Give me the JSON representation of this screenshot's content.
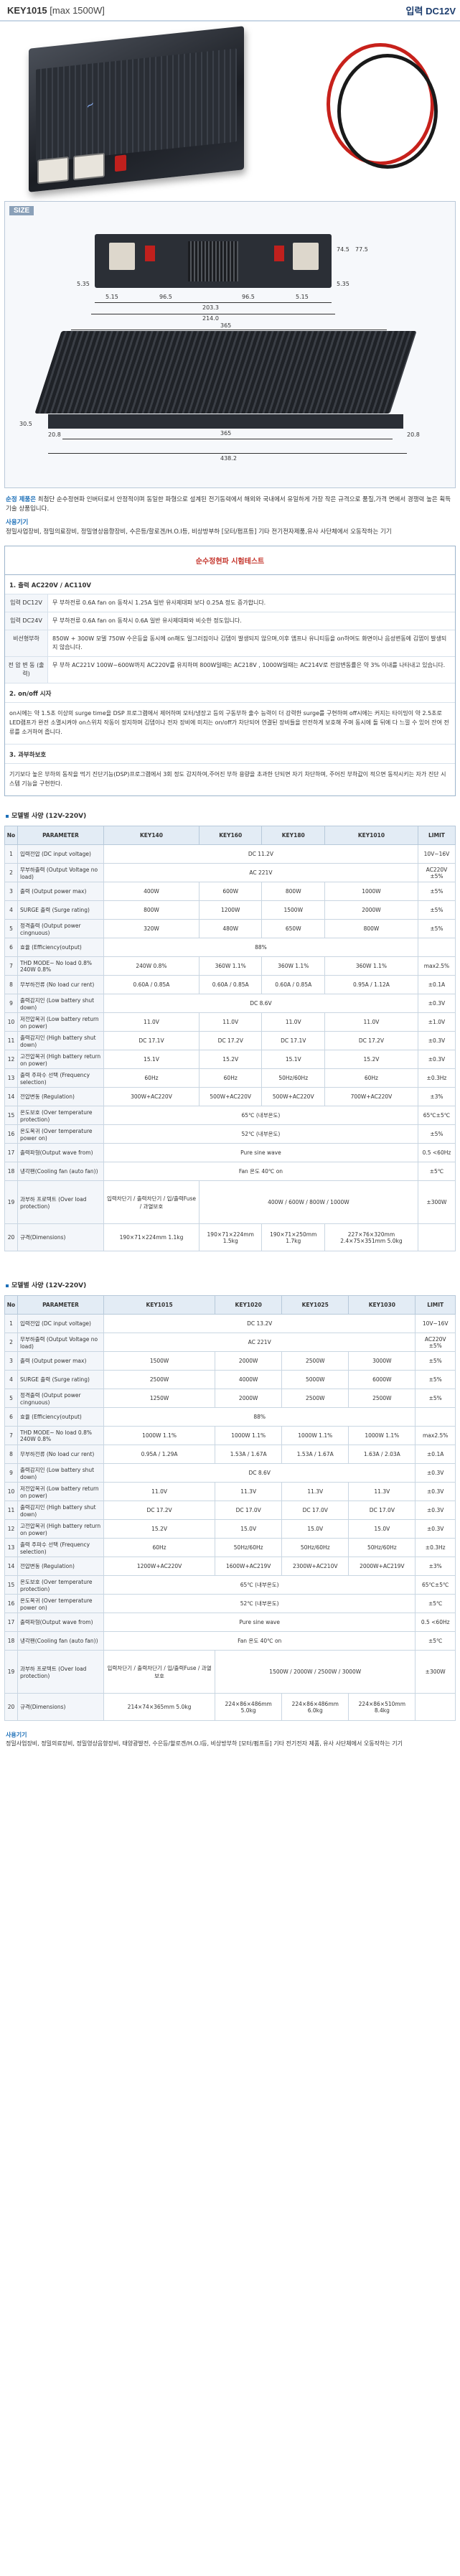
{
  "header": {
    "model": "KEY1015",
    "sub": "[max 1500W]",
    "input_label": "입력 DC12V"
  },
  "size": {
    "title": "SIZE",
    "dims_front": [
      "5.35",
      "5.15",
      "96.5",
      "96.5",
      "5.15",
      "5.35",
      "203.3",
      "214.0",
      "74.5",
      "77.5"
    ],
    "dims_side": [
      "365",
      "30.5",
      "20.8",
      "365",
      "20.8",
      "438.2"
    ]
  },
  "description": {
    "lead_highlight": "순정 제품은",
    "body": " 최첨단 순수정현파 인버터로서 안정적이며 동일한 파형으로 설계된 전기동력에서 해외와 국내에서 유일하게 가장 작은 규격으로 품질,가격 면에서 경쟁력 높은 획득기술 상품입니다.",
    "usage_title": "사용기기",
    "usage_body": "정밀사업장비, 정밀의료장비, 정밀영상음향장비, 수은등/할로겐/H.O.I등, 비상방부하 [모터/펌프등] 기타 전기전자제품,유사 사단체에서 오동작하는 기기"
  },
  "test": {
    "title": "순수정현파 시험테스트",
    "s1": "1. 출력 AC220V / AC110V",
    "s1_rows": [
      {
        "k": "입력 DC12V",
        "v": "무 부하전류 0.6A fan on 동작시 1.25A 일반 유사제대파 보다 0.25A 정도 증가합니다."
      },
      {
        "k": "입력 DC24V",
        "v": "무 부하전류 0.6A fan on 동작시 0.6A 일반 유사제대파와 비슷한 정도입니다."
      },
      {
        "k": "비선형부하",
        "v": "850W + 300W 모델 750W 수은등을 동시에 on해도 일그러짐이나 김뎁이 발생되지 않으며,이후 앰프나 유니티등을 on하여도 화면이나 음성변동에 김뎁이 발생되지 않습니다."
      },
      {
        "k": "전 압 변 동 (출력)",
        "v": "무 부하 AC221V 100W~600W까지 AC220V를 유지하며 800W일때는 AC218V , 1000W일때는 AC214V로 전압변동률은 약 3% 이내를 나타내고 있습니다."
      }
    ],
    "s2": "2. on/off 시자",
    "s2_body": "on시에는 약 1.5초 이상의 surge time을 DSP 프로그램에서 제어하며 모터/냉장고 등의 구동부하 출수 능력이 더 강력한 surge를 구현하며 off시에는 커지는 타이밍이 약 2.5초로 LED램프가 완전 소멸시켜야 on스위치 작동이 정지하며 김뎁이나 전자 장비에 미치는 on/off가 차단되어 연결된 장비들을 안전하게 보호해 주며 동시에 돌 뒤에 다 느낄 수 있어 잔여 전류를 소거하여 줍니다.",
    "s3": "3. 과부하보호",
    "s3_body": "기기보다 높은 부하의 동작을 먹기 진단기능(DSP)프로그램에서 3회 정도 감지하여,주어진 부하 용량을 초과한 단되면 자기 차단하며, 주어진 부하값이 적으면 동작시키는 자가 진단 시스템 기능을 구현한다."
  },
  "table1": {
    "title": "모델별 사양 (12V-220V)",
    "headers": [
      "No",
      "PARAMETER",
      "KEY140",
      "KEY160",
      "KEY180",
      "KEY1010",
      "LIMIT"
    ],
    "rows": [
      [
        "1",
        "입력전압 (DC input voltage)",
        "DC 11.2V",
        "",
        "",
        "",
        "10V~16V"
      ],
      [
        "2",
        "무부하출력 (Output Voltage no load)",
        "AC 221V",
        "",
        "",
        "",
        "AC220V ±5%"
      ],
      [
        "3",
        "출력 (Output power max)",
        "400W",
        "600W",
        "800W",
        "1000W",
        "±5%"
      ],
      [
        "4",
        "SURGE 출력 (Surge rating)",
        "800W",
        "1200W",
        "1500W",
        "2000W",
        "±5%"
      ],
      [
        "5",
        "정격출력 (Output power cingnuous)",
        "320W",
        "480W",
        "650W",
        "800W",
        "±5%"
      ],
      [
        "6",
        "효율 (Efficiency(output)",
        "88%",
        "",
        "",
        "",
        ""
      ],
      [
        "7",
        "THD MODE~ No load 0.8% 240W 0.8%",
        "240W 0.8%",
        "360W 1.1%",
        "360W 1.1%",
        "360W 1.1%",
        "max2.5%"
      ],
      [
        "8",
        "무부하전류 (No load cur rent)",
        "0.60A / 0.85A",
        "0.60A / 0.85A",
        "0.60A / 0.85A",
        "0.95A / 1.12A",
        "±0.1A"
      ],
      [
        "9",
        "출력감지인 (Low battery shut down)",
        "DC 8.6V",
        "",
        "",
        "",
        "±0.3V"
      ],
      [
        "10",
        "저전압복귀 (Low battery return on power)",
        "11.0V",
        "11.0V",
        "11.0V",
        "11.0V",
        "±1.0V"
      ],
      [
        "11",
        "출력감지인 (High battery shut down)",
        "DC 17.1V",
        "DC 17.2V",
        "DC 17.1V",
        "DC 17.2V",
        "±0.3V"
      ],
      [
        "12",
        "고전압복귀 (High battery return on power)",
        "15.1V",
        "15.2V",
        "15.1V",
        "15.2V",
        "±0.3V"
      ],
      [
        "13",
        "출력 주파수 선택 (Frequency selection)",
        "60Hz",
        "60Hz",
        "50Hz/60Hz",
        "60Hz",
        "±0.3Hz"
      ],
      [
        "14",
        "전압변동 (Regulation)",
        "300W+AC220V",
        "500W+AC220V",
        "500W+AC220V",
        "700W+AC220V",
        "±3%"
      ],
      [
        "15",
        "온도보호 (Over temperature protection)",
        "65℃ (내부온도)",
        "",
        "",
        "",
        "65℃±5℃"
      ],
      [
        "16",
        "온도복귀 (Over temperature power on)",
        "52℃ (내부온도)",
        "",
        "",
        "",
        "±5%"
      ],
      [
        "17",
        "출력파형(Output wave from)",
        "Pure sine wave",
        "",
        "",
        "",
        "0.5 <60Hz"
      ],
      [
        "18",
        "냉각팬(Cooling fan (auto fan))",
        "Fan 온도 40℃ on",
        "",
        "",
        "",
        "±5℃"
      ],
      [
        "19",
        "과부하 프로텍트 (Over load protection)",
        "입력차단기 / 출력차단기 / 입/출력Fuse / 과열보호",
        "400W / 600W / 800W / 1000W",
        "",
        "",
        "±300W"
      ],
      [
        "20",
        "규격(Dimensions)",
        "190×71×224mm 1.1kg",
        "190×71×224mm 1.5kg",
        "190×71×250mm 1.7kg",
        "227×76×320mm 2.4×75×351mm 5.0kg",
        ""
      ]
    ]
  },
  "table2": {
    "title": "모델별 사양 (12V-220V)",
    "headers": [
      "No",
      "PARAMETER",
      "KEY1015",
      "KEY1020",
      "KEY1025",
      "KEY1030",
      "LIMIT"
    ],
    "rows": [
      [
        "1",
        "입력전압 (DC input voltage)",
        "DC 13.2V",
        "",
        "",
        "",
        "10V~16V"
      ],
      [
        "2",
        "무부하출력 (Output Voltage no load)",
        "AC 221V",
        "",
        "",
        "",
        "AC220V ±5%"
      ],
      [
        "3",
        "출력 (Output power max)",
        "1500W",
        "2000W",
        "2500W",
        "3000W",
        "±5%"
      ],
      [
        "4",
        "SURGE 출력 (Surge rating)",
        "2500W",
        "4000W",
        "5000W",
        "6000W",
        "±5%"
      ],
      [
        "5",
        "정격출력 (Output power cingnuous)",
        "1250W",
        "2000W",
        "2500W",
        "2500W",
        "±5%"
      ],
      [
        "6",
        "효율 (Efficiency(output)",
        "88%",
        "",
        "",
        "",
        ""
      ],
      [
        "7",
        "THD MODE~ No load 0.8% 240W 0.8%",
        "1000W 1.1%",
        "1000W 1.1%",
        "1000W 1.1%",
        "1000W 1.1%",
        "max2.5%"
      ],
      [
        "8",
        "무부하전류 (No load cur rent)",
        "0.95A / 1.29A",
        "1.53A / 1.67A",
        "1.53A / 1.67A",
        "1.63A / 2.03A",
        "±0.1A"
      ],
      [
        "9",
        "출력감지인 (Low battery shut down)",
        "DC 8.6V",
        "",
        "",
        "",
        "±0.3V"
      ],
      [
        "10",
        "저전압복귀 (Low battery return on power)",
        "11.0V",
        "11.3V",
        "11.3V",
        "11.3V",
        "±0.3V"
      ],
      [
        "11",
        "출력감지인 (High battery shut down)",
        "DC 17.2V",
        "DC 17.0V",
        "DC 17.0V",
        "DC 17.0V",
        "±0.3V"
      ],
      [
        "12",
        "고전압복귀 (High battery return on power)",
        "15.2V",
        "15.0V",
        "15.0V",
        "15.0V",
        "±0.3V"
      ],
      [
        "13",
        "출력 주파수 선택 (Frequency selection)",
        "60Hz",
        "50Hz/60Hz",
        "50Hz/60Hz",
        "50Hz/60Hz",
        "±0.3Hz"
      ],
      [
        "14",
        "전압변동 (Regulation)",
        "1200W+AC220V",
        "1600W+AC219V",
        "2300W+AC210V",
        "2000W+AC219V",
        "±3%"
      ],
      [
        "15",
        "온도보호 (Over temperature protection)",
        "65℃ (내부온도)",
        "",
        "",
        "",
        "65℃±5℃"
      ],
      [
        "16",
        "온도복귀 (Over temperature power on)",
        "52℃ (내부온도)",
        "",
        "",
        "",
        "±5℃"
      ],
      [
        "17",
        "출력파형(Output wave from)",
        "Pure sine wave",
        "",
        "",
        "",
        "0.5 <60Hz"
      ],
      [
        "18",
        "냉각팬(Cooling fan (auto fan))",
        "Fan 온도 40℃ on",
        "",
        "",
        "",
        "±5℃"
      ],
      [
        "19",
        "과부하 프로텍트 (Over load protection)",
        "입력차단기 / 출력차단기 / 입/출력Fuse / 과열보호",
        "1500W / 2000W / 2500W / 3000W",
        "",
        "",
        "±300W"
      ],
      [
        "20",
        "규격(Dimensions)",
        "214×74×365mm 5.0kg",
        "224×86×486mm 5.0kg",
        "224×86×486mm 6.0kg",
        "224×86×510mm 8.4kg",
        ""
      ]
    ]
  },
  "footer": {
    "link": "사용기기",
    "body": "정밀사업장비, 정밀의료장비, 정밀영상음향장비, 태양광발전, 수은등/할로겐/H.O.I등, 비상방부하 [모터/펌프등] 기타 전기전자 제품, 유사 사단체에서 오동작하는 기기"
  }
}
